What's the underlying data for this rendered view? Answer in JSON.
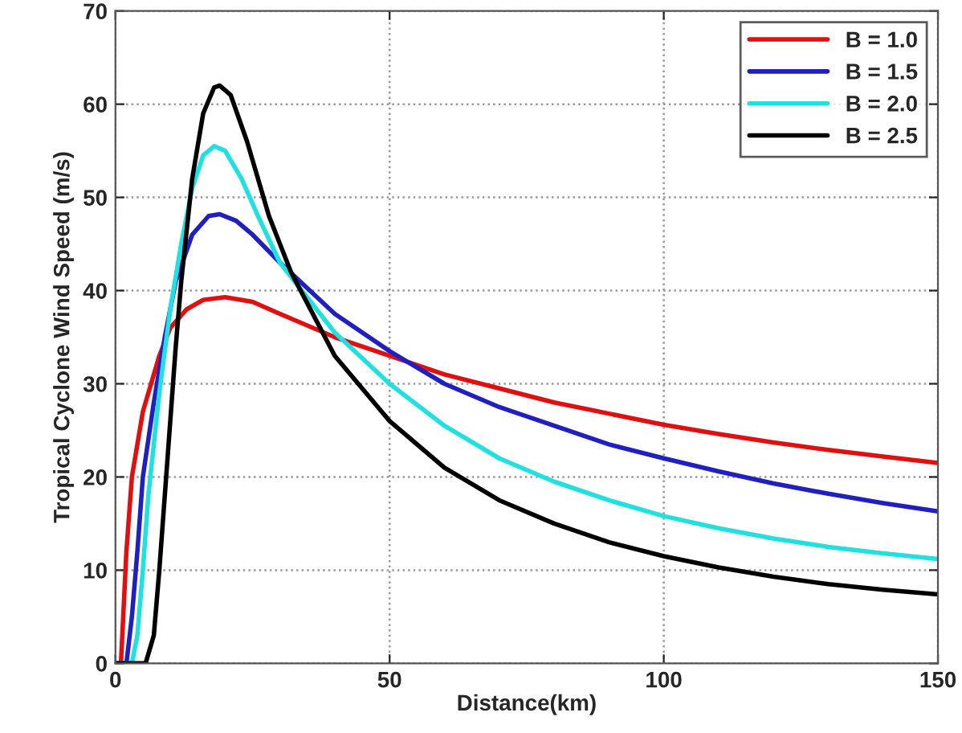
{
  "chart_data": {
    "type": "line",
    "xlabel": "Distance(km)",
    "ylabel": "Tropical Cyclone Wind Speed (m/s)",
    "xlim": [
      0,
      150
    ],
    "xticks": [
      0,
      50,
      100,
      150
    ],
    "ylim": [
      0,
      70
    ],
    "yticks": [
      0,
      10,
      20,
      30,
      40,
      50,
      60,
      70
    ],
    "grid": true,
    "legend": "top right",
    "marker": "none",
    "line_style": "solid",
    "series": [
      {
        "name": "B = 1.0",
        "color": "#e01010",
        "x": [
          1,
          2,
          3,
          5,
          8,
          10,
          13,
          16,
          20,
          25,
          30,
          40,
          50,
          60,
          70,
          80,
          90,
          100,
          110,
          120,
          130,
          140,
          150
        ],
        "values": [
          0,
          12,
          20,
          27,
          33,
          36,
          38,
          39,
          39.3,
          38.8,
          37.5,
          35,
          33,
          31,
          29.5,
          28,
          26.8,
          25.6,
          24.6,
          23.7,
          22.9,
          22.2,
          21.5
        ]
      },
      {
        "name": "B = 1.5",
        "color": "#2020c0",
        "x": [
          0,
          2,
          3,
          4,
          5,
          7,
          9,
          11,
          14,
          17,
          19,
          22,
          25,
          30,
          40,
          50,
          60,
          70,
          80,
          90,
          100,
          110,
          120,
          130,
          140,
          150
        ],
        "values": [
          0,
          0,
          5,
          12,
          20,
          28,
          35,
          41,
          46,
          48,
          48.2,
          47.5,
          46,
          43,
          37.5,
          33.5,
          30,
          27.5,
          25.5,
          23.5,
          22,
          20.6,
          19.3,
          18.2,
          17.2,
          16.3
        ]
      },
      {
        "name": "B = 2.0",
        "color": "#20e0e0",
        "x": [
          0,
          3,
          4,
          5,
          6,
          8,
          10,
          12,
          14,
          16,
          18,
          20,
          23,
          26,
          30,
          40,
          50,
          60,
          70,
          80,
          90,
          100,
          110,
          120,
          130,
          140,
          150
        ],
        "values": [
          0,
          0,
          3,
          10,
          18,
          29,
          38,
          45,
          51,
          54.5,
          55.5,
          55,
          52,
          48,
          43,
          35.5,
          30,
          25.5,
          22,
          19.5,
          17.5,
          15.8,
          14.5,
          13.4,
          12.5,
          11.8,
          11.2
        ]
      },
      {
        "name": "B = 2.5",
        "color": "#000000",
        "x": [
          0,
          5.5,
          7,
          8,
          9,
          10,
          11,
          12,
          14,
          16,
          18,
          19,
          21,
          24,
          28,
          32,
          40,
          50,
          60,
          70,
          80,
          90,
          100,
          110,
          120,
          130,
          140,
          150
        ],
        "values": [
          0,
          0,
          3,
          10,
          18,
          26,
          34,
          41,
          52,
          59,
          61.8,
          62,
          61,
          56,
          48,
          42,
          33,
          26,
          21,
          17.5,
          15,
          13,
          11.5,
          10.3,
          9.3,
          8.5,
          7.9,
          7.4
        ]
      }
    ]
  }
}
